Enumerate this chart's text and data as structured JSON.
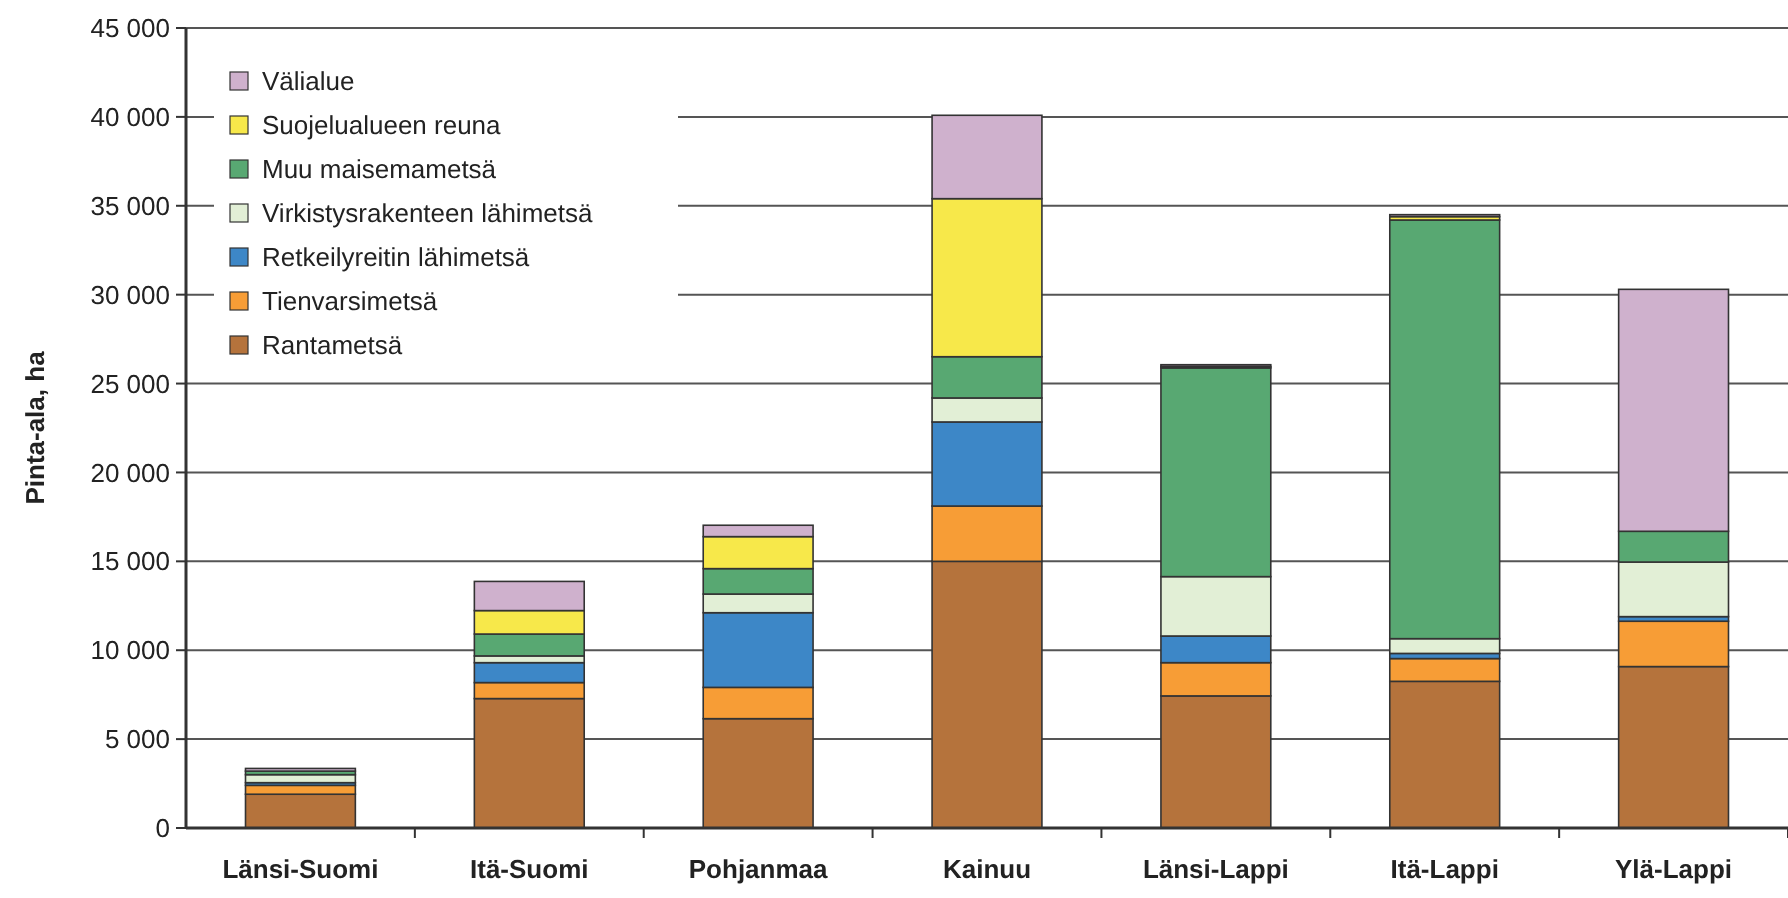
{
  "chart_data": {
    "type": "bar",
    "stacked": true,
    "ylabel": "Pinta-ala, ha",
    "categories": [
      "Länsi-Suomi",
      "Itä-Suomi",
      "Pohjanmaa",
      "Kainuu",
      "Länsi-Lappi",
      "Itä-Lappi",
      "Ylä-Lappi"
    ],
    "series": [
      {
        "name": "Rantametsä",
        "color": "#b5733c",
        "values": [
          1900,
          7280,
          6150,
          15000,
          7430,
          8250,
          9080
        ]
      },
      {
        "name": "Tienvarsimetsä",
        "color": "#f79d36",
        "values": [
          500,
          900,
          1760,
          3110,
          1870,
          1280,
          2550
        ]
      },
      {
        "name": "Retkeilyreitin lähimetsä",
        "color": "#3d87c7",
        "values": [
          150,
          1120,
          4200,
          4730,
          1500,
          290,
          260
        ]
      },
      {
        "name": "Virkistysrakenteen lähimetsä",
        "color": "#e2efd6",
        "values": [
          450,
          380,
          1050,
          1350,
          3340,
          830,
          3070
        ]
      },
      {
        "name": "Muu maisemametsä",
        "color": "#58a872",
        "values": [
          200,
          1230,
          1430,
          2320,
          11740,
          23550,
          1730
        ]
      },
      {
        "name": "Suojelualueen reuna",
        "color": "#f7e84a",
        "values": [
          null,
          1320,
          1800,
          8890,
          80,
          190,
          0
        ]
      },
      {
        "name": "Välialue",
        "color": "#cfb1cd",
        "values": [
          150,
          1640,
          640,
          4690,
          100,
          110,
          13610
        ]
      }
    ],
    "ylim": [
      0,
      45000
    ],
    "yticks": [
      {
        "value": 0,
        "label": "0"
      },
      {
        "value": 5000,
        "label": "5 000"
      },
      {
        "value": 10000,
        "label": "10 000"
      },
      {
        "value": 15000,
        "label": "15 000"
      },
      {
        "value": 20000,
        "label": "20 000"
      },
      {
        "value": 25000,
        "label": "25 000"
      },
      {
        "value": 30000,
        "label": "30 000"
      },
      {
        "value": 35000,
        "label": "35 000"
      },
      {
        "value": 40000,
        "label": "40 000"
      },
      {
        "value": 45000,
        "label": "45 000"
      }
    ],
    "grid": "y",
    "legend": "top left"
  }
}
